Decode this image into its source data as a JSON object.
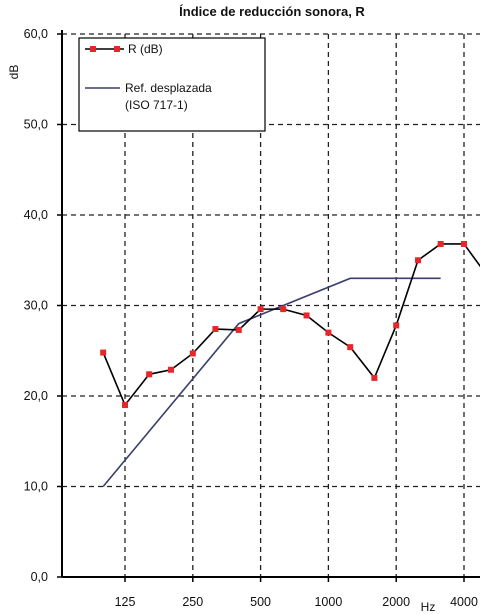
{
  "chart_data": {
    "type": "line",
    "title": "Índice de reducción sonora, R",
    "ylabel": "dB",
    "xlabel": "Hz",
    "ylim": [
      0,
      60
    ],
    "yticks": [
      "0,0",
      "10,0",
      "20,0",
      "30,0",
      "40,0",
      "50,0",
      "60,0"
    ],
    "x_scale": "log (third-octave bands)",
    "xticks": [
      "125",
      "250",
      "500",
      "1000",
      "2000",
      "4000"
    ],
    "grid": true,
    "legend_position": "top-left",
    "series": [
      {
        "name": "R (dB)",
        "color": "#e8262a",
        "line_color": "#000000",
        "marker": "square",
        "x": [
          100,
          125,
          160,
          200,
          250,
          315,
          400,
          500,
          630,
          800,
          1000,
          1250,
          1600,
          2000,
          2500,
          3150,
          4000,
          5000
        ],
        "y": [
          24.8,
          19.0,
          22.4,
          22.9,
          24.7,
          27.4,
          27.3,
          29.6,
          29.6,
          28.9,
          27.0,
          25.4,
          22.0,
          27.8,
          35.0,
          36.8,
          36.8,
          33.5
        ]
      },
      {
        "name": "Ref. desplazada\n(ISO 717-1)",
        "legend_lines": [
          "Ref. desplazada",
          "(ISO 717-1)"
        ],
        "color": "#3a3f6b",
        "x": [
          100,
          400,
          1250,
          3150
        ],
        "y": [
          10.0,
          28.0,
          33.0,
          33.0
        ]
      }
    ]
  }
}
